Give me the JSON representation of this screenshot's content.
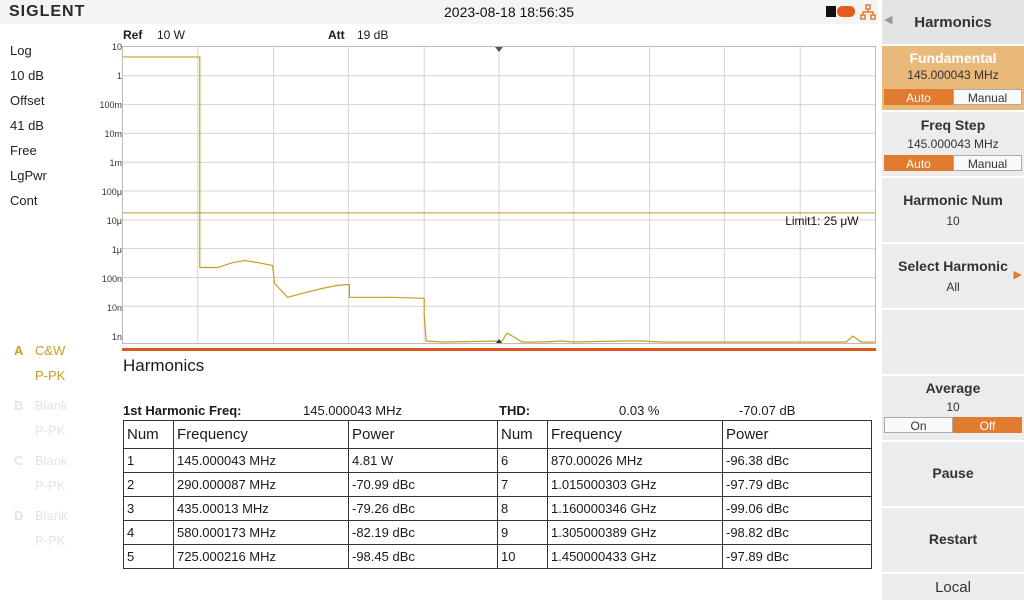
{
  "topbar": {
    "brand": "SIGLENT",
    "datetime": "2023-08-18 18:56:35"
  },
  "left_labels": [
    "Log",
    "10 dB",
    "Offset",
    "41 dB",
    "Free",
    "LgPwr",
    "Cont"
  ],
  "traces": [
    {
      "letter": "A",
      "name": "C&W",
      "sub": "P-PK",
      "active": true
    },
    {
      "letter": "B",
      "name": "Blank",
      "sub": "P-PK",
      "active": false
    },
    {
      "letter": "C",
      "name": "Blank",
      "sub": "P-PK",
      "active": false
    },
    {
      "letter": "D",
      "name": "Blank",
      "sub": "P-PK",
      "active": false
    }
  ],
  "graph": {
    "ref_label": "Ref",
    "ref_value": "10 W",
    "att_label": "Att",
    "att_value": "19 dB",
    "y_ticks": [
      "10",
      "1",
      "100m",
      "10m",
      "1m",
      "100μ",
      "10μ",
      "1μ",
      "100n",
      "10n",
      "1n"
    ],
    "limit_label": "Limit1: 25 μW",
    "trace_color": "#c8a020",
    "limit_color": "#b89a2a"
  },
  "harmonics": {
    "title": "Harmonics",
    "first_freq_label": "1st Harmonic Freq:",
    "first_freq_value": "145.000043 MHz",
    "thd_label": "THD:",
    "thd_percent": "0.03 %",
    "thd_db": "-70.07 dB",
    "headers": [
      "Num",
      "Frequency",
      "Power",
      "Num",
      "Frequency",
      "Power"
    ],
    "rows": [
      [
        "1",
        "145.000043 MHz",
        "4.81 W",
        "6",
        "870.00026 MHz",
        "-96.38 dBc"
      ],
      [
        "2",
        "290.000087 MHz",
        "-70.99 dBc",
        "7",
        "1.015000303 GHz",
        "-97.79 dBc"
      ],
      [
        "3",
        "435.00013 MHz",
        "-79.26 dBc",
        "8",
        "1.160000346 GHz",
        "-99.06 dBc"
      ],
      [
        "4",
        "580.000173 MHz",
        "-82.19 dBc",
        "9",
        "1.305000389 GHz",
        "-98.82 dBc"
      ],
      [
        "5",
        "725.000216 MHz",
        "-98.45 dBc",
        "10",
        "1.450000433 GHz",
        "-97.89 dBc"
      ]
    ]
  },
  "panel": {
    "title": "Harmonics",
    "fundamental": {
      "label": "Fundamental",
      "value": "145.000043 MHz",
      "opt1": "Auto",
      "opt2": "Manual"
    },
    "freq_step": {
      "label": "Freq Step",
      "value": "145.000043 MHz",
      "opt1": "Auto",
      "opt2": "Manual"
    },
    "harmonic_num": {
      "label": "Harmonic Num",
      "value": "10"
    },
    "select_harmonic": {
      "label": "Select Harmonic",
      "value": "All"
    },
    "average": {
      "label": "Average",
      "value": "10",
      "opt1": "On",
      "opt2": "Off"
    },
    "pause": "Pause",
    "restart": "Restart",
    "local": "Local"
  }
}
